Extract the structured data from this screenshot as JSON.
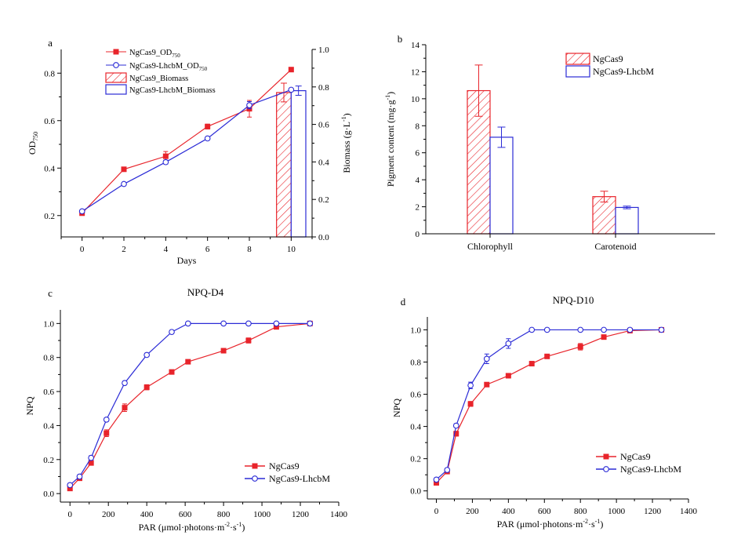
{
  "colors": {
    "red": "#e8242b",
    "blue": "#2b2bd6"
  },
  "panels": {
    "a": {
      "label": "a"
    },
    "b": {
      "label": "b"
    },
    "c": {
      "label": "c"
    },
    "d": {
      "label": "d"
    }
  },
  "chart_data": [
    {
      "id": "a",
      "type": "line+bar",
      "title": "",
      "xlabel": "Days",
      "ylabel": "OD750",
      "ylabel_main": "OD",
      "ylabel_sub": "750",
      "y2label": "Biomass (g·L-1)",
      "y2label_main": "Biomass (g·L",
      "y2label_sup": "-1",
      "y2label_end": ")",
      "xlim": [
        -1,
        11
      ],
      "ylim": [
        0.11,
        0.9
      ],
      "y2lim": [
        0,
        1.0
      ],
      "xticks": [
        0,
        2,
        4,
        6,
        8,
        10
      ],
      "yticks": [
        0.2,
        0.4,
        0.6,
        0.8
      ],
      "y2ticks": [
        0.0,
        0.2,
        0.4,
        0.6,
        0.8,
        1.0
      ],
      "legend": [
        "NgCas9_OD750",
        "NgCas9-LhcbM_OD750",
        "NgCas9_Biomass",
        "NgCas9-LhcbM_Biomass"
      ],
      "legend_parts": [
        {
          "main": "NgCas9_OD",
          "sub": "750"
        },
        {
          "main": "NgCas9-LhcbM_OD",
          "sub": "750"
        },
        {
          "main": "NgCas9_Biomass",
          "sub": ""
        },
        {
          "main": "NgCas9-LhcbM_Biomass",
          "sub": ""
        }
      ],
      "legend_position": "top-left",
      "series": [
        {
          "name": "NgCas9_OD750",
          "color": "red",
          "marker": "square",
          "x": [
            0,
            2,
            4,
            6,
            8,
            10
          ],
          "y": [
            0.21,
            0.395,
            0.45,
            0.575,
            0.65,
            0.815
          ],
          "err": [
            0.008,
            0.006,
            0.02,
            0.01,
            0.035,
            0.006
          ]
        },
        {
          "name": "NgCas9-LhcbM_OD750",
          "color": "blue",
          "marker": "circle",
          "x": [
            0,
            2,
            4,
            6,
            8,
            10
          ],
          "y": [
            0.218,
            0.333,
            0.425,
            0.525,
            0.665,
            0.73
          ],
          "err": [
            0.006,
            0.005,
            0.008,
            0.006,
            0.015,
            0.006
          ]
        }
      ],
      "bars": [
        {
          "name": "NgCas9_Biomass",
          "color": "red",
          "pattern": "hatch",
          "x": 9.65,
          "width": 0.7,
          "value": 0.77,
          "err": 0.05
        },
        {
          "name": "NgCas9-LhcbM_Biomass",
          "color": "blue",
          "pattern": "none",
          "x": 10.35,
          "width": 0.7,
          "value": 0.78,
          "err": 0.025
        }
      ]
    },
    {
      "id": "b",
      "type": "bar",
      "title": "",
      "xlabel": "",
      "ylabel": "Pigment content (mg·g-1)",
      "ylabel_main": "Pigment content (mg·g",
      "ylabel_sup": "-1",
      "ylabel_end": ")",
      "categories": [
        "Chlorophyll",
        "Carotenoid"
      ],
      "ylim": [
        0,
        14
      ],
      "yticks": [
        0,
        2,
        4,
        6,
        8,
        10,
        12,
        14
      ],
      "legend_position": "top-right",
      "series": [
        {
          "name": "NgCas9",
          "color": "red",
          "pattern": "hatch",
          "values": [
            10.6,
            2.75
          ],
          "err": [
            1.9,
            0.4
          ]
        },
        {
          "name": "NgCas9-LhcbM",
          "color": "blue",
          "pattern": "none",
          "values": [
            7.15,
            1.95
          ],
          "err": [
            0.75,
            0.1
          ]
        }
      ]
    },
    {
      "id": "c",
      "type": "line",
      "title": "NPQ-D4",
      "xlabel": "PAR (μmol·photons·m-2·s-1)",
      "xlabel_parts": [
        "PAR (μmol·photons·m",
        "-2",
        "·s",
        "-1",
        ")"
      ],
      "ylabel": "NPQ",
      "xlim": [
        -50,
        1400
      ],
      "ylim": [
        -0.05,
        1.08
      ],
      "xticks": [
        0,
        200,
        400,
        600,
        800,
        1000,
        1200,
        1400
      ],
      "yticks": [
        0.0,
        0.2,
        0.4,
        0.6,
        0.8,
        1.0
      ],
      "legend_position": "bottom-right",
      "series": [
        {
          "name": "NgCas9",
          "color": "red",
          "marker": "square",
          "x": [
            0,
            50,
            110,
            190,
            285,
            400,
            530,
            615,
            800,
            930,
            1075,
            1250
          ],
          "y": [
            0.03,
            0.09,
            0.18,
            0.355,
            0.505,
            0.625,
            0.715,
            0.775,
            0.84,
            0.9,
            0.98,
            1.0
          ],
          "err": [
            0.01,
            0.01,
            0.012,
            0.02,
            0.022,
            0.015,
            0.012,
            0.008,
            0.008,
            0.015,
            0.005,
            0.0
          ]
        },
        {
          "name": "NgCas9-LhcbM",
          "color": "blue",
          "marker": "circle",
          "x": [
            0,
            50,
            110,
            190,
            285,
            400,
            530,
            615,
            800,
            930,
            1075,
            1250
          ],
          "y": [
            0.05,
            0.1,
            0.21,
            0.435,
            0.65,
            0.815,
            0.95,
            1.0,
            1.0,
            1.0,
            1.0,
            1.0
          ],
          "err": [
            0.01,
            0.01,
            0.012,
            0.01,
            0.01,
            0.01,
            0.01,
            0.0,
            0.0,
            0.0,
            0.0,
            0.0
          ]
        }
      ]
    },
    {
      "id": "d",
      "type": "line",
      "title": "NPQ-D10",
      "xlabel": "PAR (μmol·photons·m-2·s-1)",
      "xlabel_parts": [
        "PAR (μmol·photons·m",
        "-2",
        "·s",
        "-1",
        ")"
      ],
      "ylabel": "NPQ",
      "xlim": [
        -50,
        1400
      ],
      "ylim": [
        -0.05,
        1.08
      ],
      "xticks": [
        0,
        200,
        400,
        600,
        800,
        1000,
        1200,
        1400
      ],
      "yticks": [
        0.0,
        0.2,
        0.4,
        0.6,
        0.8,
        1.0
      ],
      "legend_position": "bottom-right",
      "series": [
        {
          "name": "NgCas9",
          "color": "red",
          "marker": "square",
          "x": [
            0,
            60,
            110,
            190,
            280,
            400,
            530,
            615,
            800,
            930,
            1075,
            1250
          ],
          "y": [
            0.05,
            0.12,
            0.355,
            0.54,
            0.66,
            0.715,
            0.79,
            0.835,
            0.895,
            0.955,
            0.995,
            1.0
          ],
          "err": [
            0.01,
            0.01,
            0.015,
            0.015,
            0.01,
            0.01,
            0.012,
            0.008,
            0.02,
            0.008,
            0.005,
            0.0
          ]
        },
        {
          "name": "NgCas9-LhcbM",
          "color": "blue",
          "marker": "circle",
          "x": [
            0,
            60,
            110,
            190,
            280,
            400,
            530,
            615,
            800,
            930,
            1075,
            1250
          ],
          "y": [
            0.07,
            0.13,
            0.405,
            0.655,
            0.82,
            0.915,
            1.0,
            1.0,
            1.0,
            1.0,
            1.0,
            1.0
          ],
          "err": [
            0.01,
            0.01,
            0.012,
            0.02,
            0.03,
            0.03,
            0.0,
            0.0,
            0.0,
            0.0,
            0.0,
            0.0
          ]
        }
      ]
    }
  ]
}
